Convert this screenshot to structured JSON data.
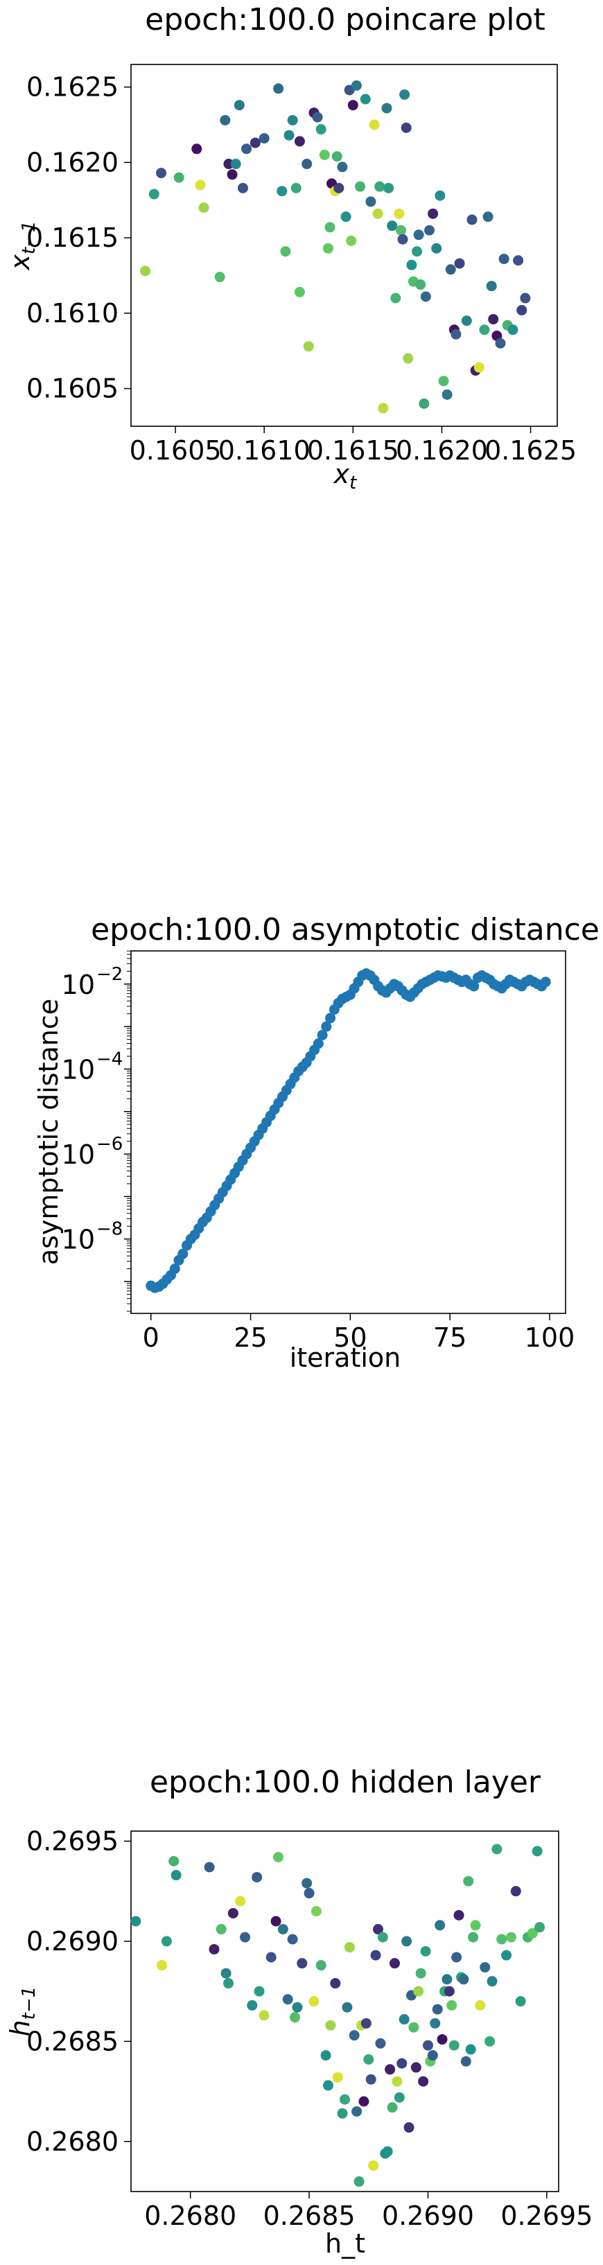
{
  "chart_data": [
    {
      "type": "scatter",
      "title": "epoch:100.0 poincare plot",
      "xlabel_base": "x",
      "xlabel_sub": "t",
      "ylabel_base": "x",
      "ylabel_sub": "t−1",
      "xlim": [
        0.16025,
        0.16265
      ],
      "ylim": [
        0.16025,
        0.16265
      ],
      "xticks": [
        0.1605,
        0.161,
        0.1615,
        0.162,
        0.1625
      ],
      "xtick_labels": [
        "0.1605",
        "0.1610",
        "0.1615",
        "0.1620",
        "0.1625"
      ],
      "yticks": [
        0.1605,
        0.161,
        0.1615,
        0.162,
        0.1625
      ],
      "ytick_labels": [
        "0.1605",
        "0.1610",
        "0.1615",
        "0.1620",
        "0.1625"
      ],
      "colormap": [
        "#440154",
        "#3b528b",
        "#21918c",
        "#5ec962",
        "#fde725"
      ],
      "points": [
        [
          0.16033,
          0.16128,
          0.85
        ],
        [
          0.16038,
          0.16179,
          0.55
        ],
        [
          0.16042,
          0.16193,
          0.25
        ],
        [
          0.16052,
          0.1619,
          0.65
        ],
        [
          0.16062,
          0.16209,
          0.05
        ],
        [
          0.16064,
          0.16185,
          0.95
        ],
        [
          0.16066,
          0.1617,
          0.85
        ],
        [
          0.16075,
          0.16124,
          0.7
        ],
        [
          0.16078,
          0.16228,
          0.35
        ],
        [
          0.1608,
          0.16199,
          0.1
        ],
        [
          0.16082,
          0.16192,
          0.05
        ],
        [
          0.16084,
          0.16199,
          0.45
        ],
        [
          0.16086,
          0.16238,
          0.4
        ],
        [
          0.16088,
          0.16183,
          0.25
        ],
        [
          0.1609,
          0.16209,
          0.3
        ],
        [
          0.16095,
          0.16213,
          0.15
        ],
        [
          0.161,
          0.16216,
          0.3
        ],
        [
          0.16108,
          0.16249,
          0.35
        ],
        [
          0.1611,
          0.16181,
          0.5
        ],
        [
          0.16112,
          0.16141,
          0.7
        ],
        [
          0.16114,
          0.16218,
          0.45
        ],
        [
          0.16116,
          0.16228,
          0.45
        ],
        [
          0.16118,
          0.16183,
          0.6
        ],
        [
          0.1612,
          0.16214,
          0.1
        ],
        [
          0.1612,
          0.16114,
          0.75
        ],
        [
          0.16124,
          0.16199,
          0.3
        ],
        [
          0.16125,
          0.16078,
          0.85
        ],
        [
          0.16128,
          0.16233,
          0.1
        ],
        [
          0.1613,
          0.1623,
          0.3
        ],
        [
          0.16132,
          0.16222,
          0.55
        ],
        [
          0.16134,
          0.16205,
          0.75
        ],
        [
          0.16136,
          0.16143,
          0.75
        ],
        [
          0.16137,
          0.16157,
          0.7
        ],
        [
          0.16138,
          0.16186,
          0.05
        ],
        [
          0.1614,
          0.16181,
          0.95
        ],
        [
          0.16141,
          0.16204,
          0.65
        ],
        [
          0.16142,
          0.16183,
          0.2
        ],
        [
          0.16144,
          0.16197,
          0.35
        ],
        [
          0.16146,
          0.16164,
          0.5
        ],
        [
          0.16148,
          0.16248,
          0.25
        ],
        [
          0.16149,
          0.16148,
          0.8
        ],
        [
          0.1615,
          0.16238,
          0.05
        ],
        [
          0.16152,
          0.16251,
          0.4
        ],
        [
          0.16154,
          0.16184,
          0.65
        ],
        [
          0.16157,
          0.16242,
          0.5
        ],
        [
          0.1616,
          0.16174,
          0.35
        ],
        [
          0.16162,
          0.16225,
          0.95
        ],
        [
          0.16164,
          0.16166,
          0.9
        ],
        [
          0.16165,
          0.16184,
          0.6
        ],
        [
          0.16167,
          0.16037,
          0.9
        ],
        [
          0.16169,
          0.16236,
          0.4
        ],
        [
          0.1617,
          0.16183,
          0.55
        ],
        [
          0.16172,
          0.16158,
          0.45
        ],
        [
          0.16174,
          0.1611,
          0.65
        ],
        [
          0.16176,
          0.16166,
          0.95
        ],
        [
          0.16177,
          0.16155,
          0.7
        ],
        [
          0.16178,
          0.16149,
          0.25
        ],
        [
          0.16179,
          0.16245,
          0.45
        ],
        [
          0.1618,
          0.16223,
          0.2
        ],
        [
          0.16181,
          0.1607,
          0.85
        ],
        [
          0.16183,
          0.16132,
          0.5
        ],
        [
          0.16184,
          0.16121,
          0.7
        ],
        [
          0.16186,
          0.16141,
          0.55
        ],
        [
          0.16187,
          0.16152,
          0.35
        ],
        [
          0.16188,
          0.16119,
          0.65
        ],
        [
          0.1619,
          0.1604,
          0.6
        ],
        [
          0.16191,
          0.16111,
          0.35
        ],
        [
          0.16193,
          0.16155,
          0.3
        ],
        [
          0.16195,
          0.16166,
          0.1
        ],
        [
          0.16197,
          0.16143,
          0.45
        ],
        [
          0.16199,
          0.16178,
          0.5
        ],
        [
          0.16201,
          0.16055,
          0.7
        ],
        [
          0.16203,
          0.16046,
          0.4
        ],
        [
          0.16205,
          0.16129,
          0.3
        ],
        [
          0.16207,
          0.16089,
          0.05
        ],
        [
          0.16208,
          0.16086,
          0.3
        ],
        [
          0.1621,
          0.16133,
          0.2
        ],
        [
          0.16214,
          0.16095,
          0.45
        ],
        [
          0.16217,
          0.16162,
          0.25
        ],
        [
          0.16219,
          0.16062,
          0.1
        ],
        [
          0.16221,
          0.16064,
          0.95
        ],
        [
          0.16224,
          0.16089,
          0.6
        ],
        [
          0.16226,
          0.16164,
          0.35
        ],
        [
          0.16228,
          0.16118,
          0.4
        ],
        [
          0.16229,
          0.16096,
          0.1
        ],
        [
          0.16231,
          0.16085,
          0.05
        ],
        [
          0.16233,
          0.1608,
          0.3
        ],
        [
          0.16235,
          0.16136,
          0.3
        ],
        [
          0.16237,
          0.16092,
          0.65
        ],
        [
          0.1624,
          0.16089,
          0.5
        ],
        [
          0.16243,
          0.16135,
          0.25
        ],
        [
          0.16245,
          0.16102,
          0.2
        ],
        [
          0.16247,
          0.1611,
          0.25
        ]
      ]
    },
    {
      "type": "scatter",
      "title": "epoch:100.0 asymptotic distance",
      "xlabel": "iteration",
      "ylabel": "asymptotic distance",
      "yscale": "log",
      "xlim": [
        -5,
        104
      ],
      "ylim_log10": [
        -9.75,
        -1.22
      ],
      "xticks": [
        0,
        25,
        50,
        75,
        100
      ],
      "xtick_labels": [
        "0",
        "25",
        "50",
        "75",
        "100"
      ],
      "yticks_log10": [
        -8,
        -6,
        -4,
        -2
      ],
      "ytick_mantissa": [
        "10",
        "10",
        "10",
        "10"
      ],
      "ytick_exponents": [
        "−8",
        "−6",
        "−4",
        "−2"
      ],
      "color": "#1f77b4",
      "y_log10": [
        -9.1,
        -9.15,
        -9.12,
        -9.05,
        -8.95,
        -8.85,
        -8.7,
        -8.5,
        -8.35,
        -8.15,
        -8.0,
        -7.9,
        -7.75,
        -7.6,
        -7.5,
        -7.35,
        -7.2,
        -7.05,
        -6.9,
        -6.75,
        -6.6,
        -6.45,
        -6.3,
        -6.15,
        -6.0,
        -5.85,
        -5.7,
        -5.55,
        -5.4,
        -5.25,
        -5.1,
        -4.95,
        -4.8,
        -4.65,
        -4.5,
        -4.35,
        -4.2,
        -4.05,
        -3.95,
        -3.85,
        -3.7,
        -3.55,
        -3.4,
        -3.2,
        -3.0,
        -2.8,
        -2.6,
        -2.45,
        -2.35,
        -2.3,
        -2.25,
        -2.1,
        -1.95,
        -1.8,
        -1.75,
        -1.8,
        -1.9,
        -2.05,
        -2.15,
        -2.2,
        -2.1,
        -2.0,
        -2.05,
        -2.15,
        -2.25,
        -2.3,
        -2.2,
        -2.1,
        -2.0,
        -1.95,
        -1.9,
        -1.85,
        -1.8,
        -1.82,
        -1.85,
        -1.8,
        -1.85,
        -1.9,
        -1.95,
        -1.9,
        -2.0,
        -2.05,
        -1.85,
        -1.8,
        -1.85,
        -1.9,
        -2.0,
        -2.05,
        -2.1,
        -2.0,
        -1.9,
        -1.95,
        -2.0,
        -2.05,
        -1.95,
        -1.9,
        -1.95,
        -2.0,
        -2.05,
        -1.95
      ]
    },
    {
      "type": "scatter",
      "title": "epoch:100.0 hidden layer",
      "xlabel": "h_t",
      "ylabel_base": "h",
      "ylabel_sub": "t−1",
      "xlim": [
        0.26775,
        0.26955
      ],
      "ylim": [
        0.26775,
        0.26955
      ],
      "xticks": [
        0.268,
        0.2685,
        0.269,
        0.2695
      ],
      "xtick_labels": [
        "0.2680",
        "0.2685",
        "0.2690",
        "0.2695"
      ],
      "yticks": [
        0.268,
        0.2685,
        0.269,
        0.2695
      ],
      "ytick_labels": [
        "0.2680",
        "0.2685",
        "0.2690",
        "0.2695"
      ],
      "colormap": [
        "#440154",
        "#3b528b",
        "#21918c",
        "#5ec962",
        "#fde725"
      ],
      "points": [
        [
          0.26777,
          0.2691,
          0.5
        ],
        [
          0.26788,
          0.26888,
          0.95
        ],
        [
          0.2679,
          0.269,
          0.55
        ],
        [
          0.26793,
          0.2694,
          0.65
        ],
        [
          0.26794,
          0.26933,
          0.5
        ],
        [
          0.26808,
          0.26937,
          0.3
        ],
        [
          0.2681,
          0.26896,
          0.1
        ],
        [
          0.26813,
          0.26906,
          0.7
        ],
        [
          0.26815,
          0.26884,
          0.45
        ],
        [
          0.26816,
          0.26879,
          0.55
        ],
        [
          0.26818,
          0.26914,
          0.1
        ],
        [
          0.26821,
          0.2692,
          0.95
        ],
        [
          0.26823,
          0.26902,
          0.3
        ],
        [
          0.26826,
          0.26868,
          0.5
        ],
        [
          0.26828,
          0.26932,
          0.3
        ],
        [
          0.26829,
          0.26875,
          0.55
        ],
        [
          0.26831,
          0.26863,
          0.9
        ],
        [
          0.26834,
          0.26892,
          0.25
        ],
        [
          0.26836,
          0.2691,
          0.05
        ],
        [
          0.26837,
          0.26942,
          0.75
        ],
        [
          0.26839,
          0.26906,
          0.4
        ],
        [
          0.26841,
          0.26871,
          0.35
        ],
        [
          0.26843,
          0.26901,
          0.3
        ],
        [
          0.26844,
          0.26862,
          0.7
        ],
        [
          0.26845,
          0.26867,
          0.45
        ],
        [
          0.26847,
          0.26889,
          0.2
        ],
        [
          0.26849,
          0.26929,
          0.35
        ],
        [
          0.2685,
          0.26924,
          0.3
        ],
        [
          0.26852,
          0.2687,
          0.95
        ],
        [
          0.26853,
          0.26915,
          0.8
        ],
        [
          0.26855,
          0.26888,
          0.65
        ],
        [
          0.26857,
          0.26843,
          0.5
        ],
        [
          0.26858,
          0.26828,
          0.5
        ],
        [
          0.26859,
          0.26858,
          0.85
        ],
        [
          0.26861,
          0.26879,
          0.15
        ],
        [
          0.26862,
          0.26832,
          0.95
        ],
        [
          0.26864,
          0.26814,
          0.55
        ],
        [
          0.26865,
          0.26821,
          0.6
        ],
        [
          0.26866,
          0.26867,
          0.4
        ],
        [
          0.26867,
          0.26897,
          0.85
        ],
        [
          0.26869,
          0.26853,
          0.35
        ],
        [
          0.2687,
          0.26815,
          0.35
        ],
        [
          0.26871,
          0.2678,
          0.6
        ],
        [
          0.26872,
          0.26858,
          0.9
        ],
        [
          0.26873,
          0.2682,
          0.05
        ],
        [
          0.26874,
          0.26859,
          0.2
        ],
        [
          0.26875,
          0.26841,
          0.6
        ],
        [
          0.26876,
          0.26831,
          0.25
        ],
        [
          0.26877,
          0.26788,
          0.95
        ],
        [
          0.26878,
          0.26893,
          0.2
        ],
        [
          0.26879,
          0.26906,
          0.15
        ],
        [
          0.2688,
          0.26849,
          0.3
        ],
        [
          0.26881,
          0.26902,
          0.6
        ],
        [
          0.26882,
          0.26794,
          0.5
        ],
        [
          0.26883,
          0.26795,
          0.5
        ],
        [
          0.26884,
          0.26836,
          0.1
        ],
        [
          0.26885,
          0.26817,
          0.65
        ],
        [
          0.26886,
          0.26889,
          0.1
        ],
        [
          0.26887,
          0.2683,
          0.9
        ],
        [
          0.26888,
          0.26822,
          0.55
        ],
        [
          0.26889,
          0.26839,
          0.2
        ],
        [
          0.2689,
          0.26861,
          0.45
        ],
        [
          0.26891,
          0.269,
          0.4
        ],
        [
          0.26892,
          0.26807,
          0.15
        ],
        [
          0.26893,
          0.26873,
          0.3
        ],
        [
          0.26894,
          0.26857,
          0.7
        ],
        [
          0.26895,
          0.26837,
          0.1
        ],
        [
          0.26896,
          0.26875,
          0.85
        ],
        [
          0.26897,
          0.26884,
          0.65
        ],
        [
          0.26898,
          0.2683,
          0.1
        ],
        [
          0.26899,
          0.26895,
          0.55
        ],
        [
          0.269,
          0.26848,
          0.25
        ],
        [
          0.26901,
          0.2684,
          0.75
        ],
        [
          0.26902,
          0.26843,
          0.3
        ],
        [
          0.26903,
          0.26859,
          0.4
        ],
        [
          0.26904,
          0.26866,
          0.3
        ],
        [
          0.26905,
          0.26908,
          0.4
        ],
        [
          0.26906,
          0.26851,
          0.05
        ],
        [
          0.26907,
          0.26875,
          0.6
        ],
        [
          0.26908,
          0.26881,
          0.4
        ],
        [
          0.26909,
          0.26875,
          0.15
        ],
        [
          0.2691,
          0.26868,
          0.75
        ],
        [
          0.26911,
          0.26848,
          0.6
        ],
        [
          0.26912,
          0.26892,
          0.3
        ],
        [
          0.26913,
          0.26913,
          0.1
        ],
        [
          0.26914,
          0.26882,
          0.55
        ],
        [
          0.26915,
          0.26881,
          0.35
        ],
        [
          0.26916,
          0.2684,
          0.3
        ],
        [
          0.26917,
          0.2693,
          0.65
        ],
        [
          0.26918,
          0.26846,
          0.5
        ],
        [
          0.26919,
          0.26902,
          0.65
        ],
        [
          0.2692,
          0.26908,
          0.75
        ],
        [
          0.26922,
          0.26868,
          0.95
        ],
        [
          0.26924,
          0.26887,
          0.35
        ],
        [
          0.26926,
          0.2685,
          0.6
        ],
        [
          0.26927,
          0.2688,
          0.45
        ],
        [
          0.26929,
          0.26946,
          0.6
        ],
        [
          0.26931,
          0.26901,
          0.7
        ],
        [
          0.26933,
          0.26893,
          0.5
        ],
        [
          0.26935,
          0.26902,
          0.75
        ],
        [
          0.26937,
          0.26925,
          0.15
        ],
        [
          0.26939,
          0.2687,
          0.55
        ],
        [
          0.26942,
          0.26902,
          0.65
        ],
        [
          0.26944,
          0.26904,
          0.75
        ],
        [
          0.26946,
          0.26945,
          0.55
        ],
        [
          0.26947,
          0.26907,
          0.6
        ]
      ]
    }
  ]
}
